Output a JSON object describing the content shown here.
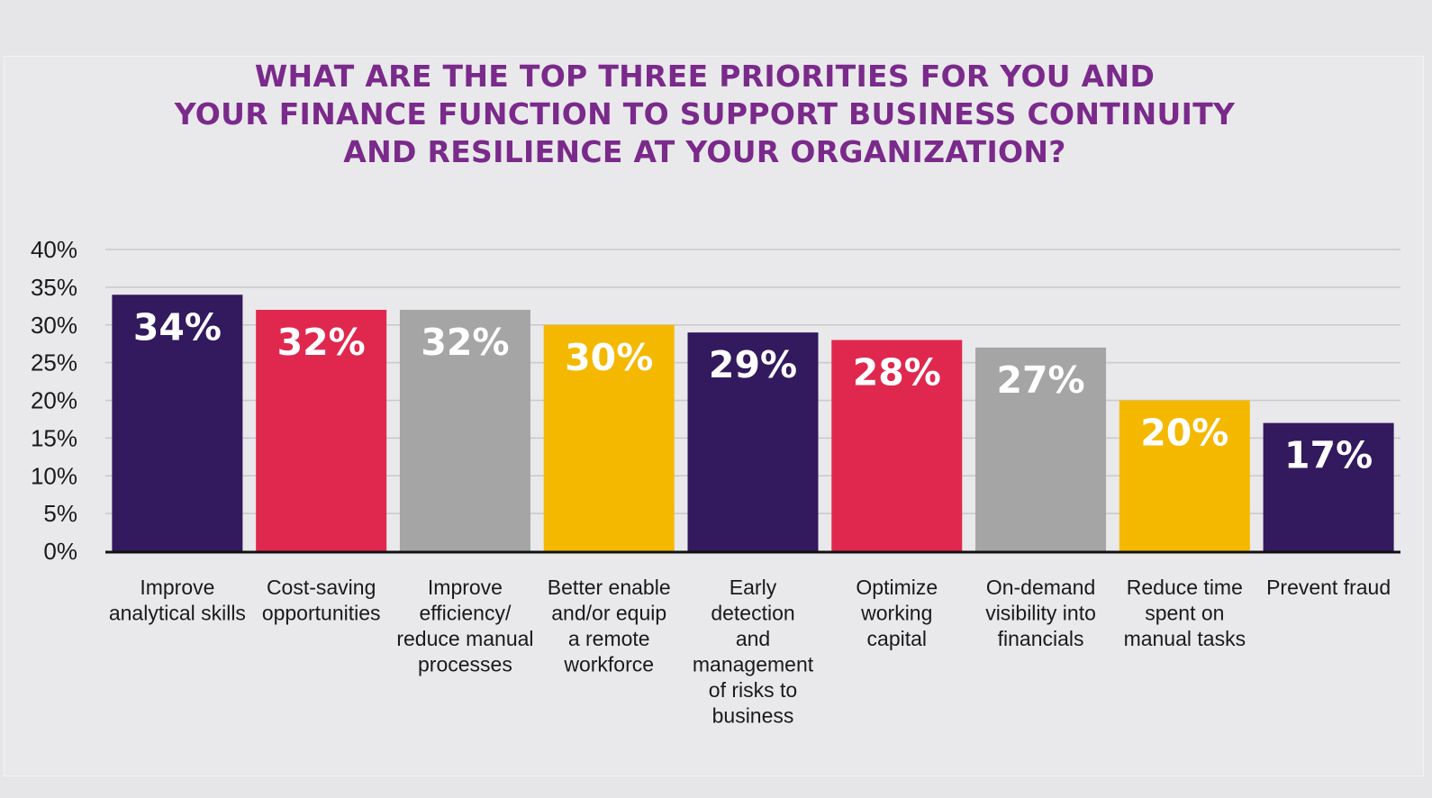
{
  "title_lines": [
    "WHAT ARE THE TOP THREE PRIORITIES FOR YOU AND",
    "YOUR FINANCE FUNCTION TO SUPPORT BUSINESS CONTINUITY",
    "AND RESILIENCE AT YOUR ORGANIZATION?"
  ],
  "chart_data": {
    "type": "bar",
    "title": "WHAT ARE THE TOP THREE PRIORITIES FOR YOU AND YOUR FINANCE FUNCTION TO SUPPORT BUSINESS CONTINUITY AND RESILIENCE AT YOUR ORGANIZATION?",
    "xlabel": "",
    "ylabel": "",
    "ylim": [
      0,
      40
    ],
    "yticks": [
      "0%",
      "5%",
      "10%",
      "15%",
      "20%",
      "25%",
      "30%",
      "35%",
      "40%"
    ],
    "grid": true,
    "categories": [
      [
        "Improve",
        "analytical skills"
      ],
      [
        "Cost-saving",
        "opportunities"
      ],
      [
        "Improve",
        "efficiency/",
        "reduce manual",
        "processes"
      ],
      [
        "Better enable",
        "and/or equip",
        "a remote",
        "workforce"
      ],
      [
        "Early",
        "detection",
        "and",
        "management",
        "of risks to",
        "business"
      ],
      [
        "Optimize",
        "working",
        "capital"
      ],
      [
        "On-demand",
        "visibility into",
        "financials"
      ],
      [
        "Reduce time",
        "spent on",
        "manual tasks"
      ],
      [
        "Prevent fraud"
      ]
    ],
    "values": [
      34,
      32,
      32,
      30,
      29,
      28,
      27,
      20,
      17
    ],
    "value_labels": [
      "34%",
      "32%",
      "32%",
      "30%",
      "29%",
      "28%",
      "27%",
      "20%",
      "17%"
    ],
    "colors": [
      "#33195e",
      "#e0284f",
      "#a5a5a5",
      "#f5b800",
      "#33195e",
      "#e0284f",
      "#a5a5a5",
      "#f5b800",
      "#33195e"
    ]
  }
}
